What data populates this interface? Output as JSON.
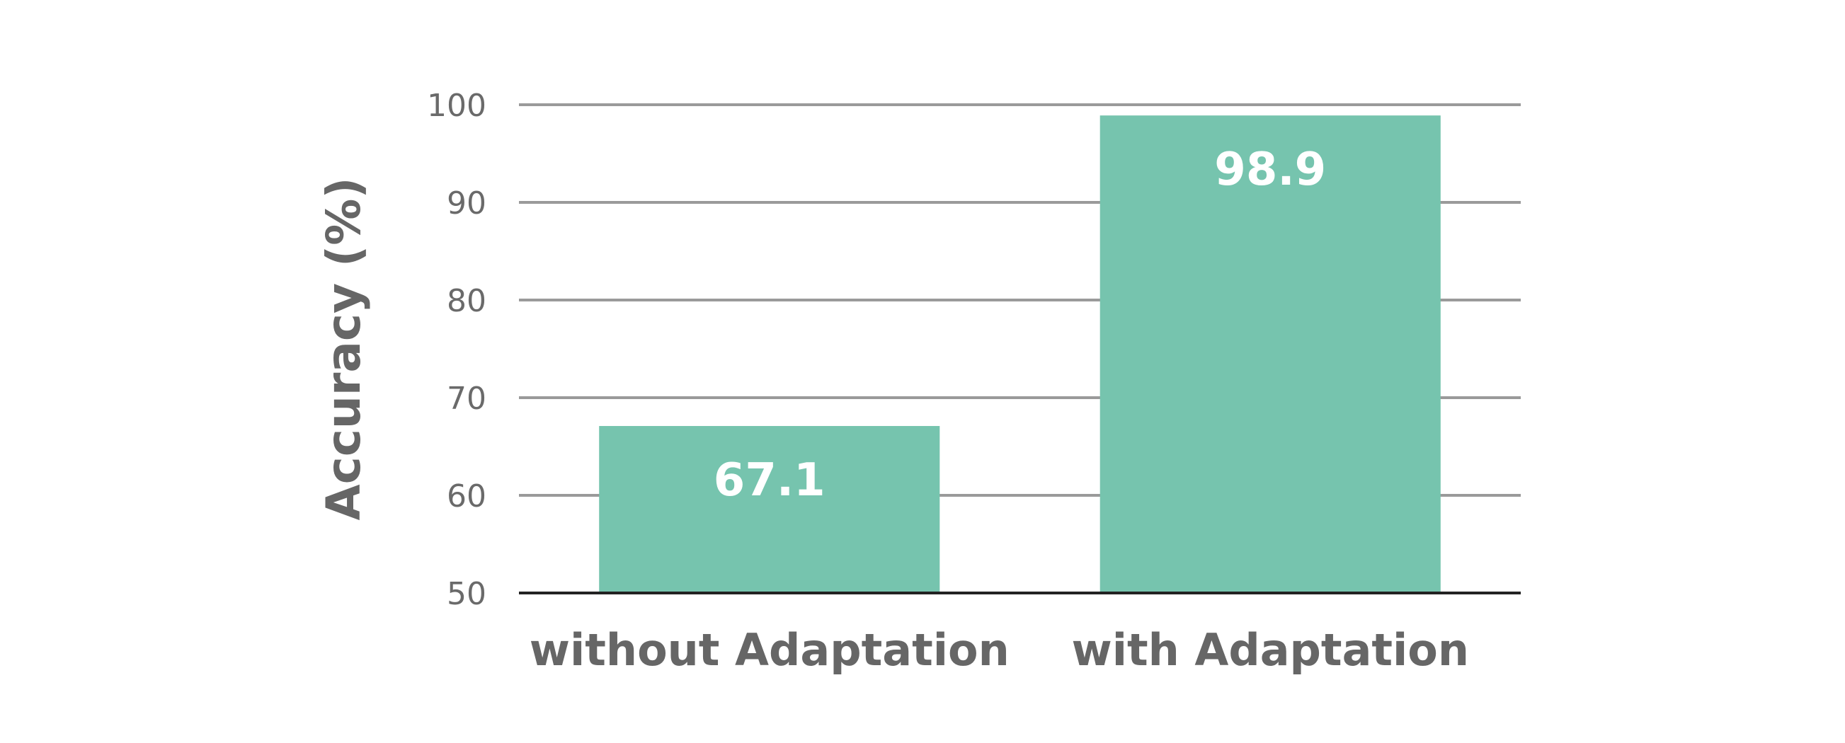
{
  "chart_data": {
    "type": "bar",
    "categories": [
      "without Adaptation",
      "with Adaptation"
    ],
    "values": [
      67.1,
      98.9
    ],
    "value_labels": [
      "67.1",
      "98.9"
    ],
    "ylabel": "Accuracy (%)",
    "ylim": [
      50,
      100
    ],
    "yticks": [
      50,
      60,
      70,
      80,
      90,
      100
    ],
    "ytick_labels": [
      "50",
      "60",
      "70",
      "80",
      "90",
      "100"
    ],
    "grid": true,
    "bar_color": "#76c4ae"
  }
}
